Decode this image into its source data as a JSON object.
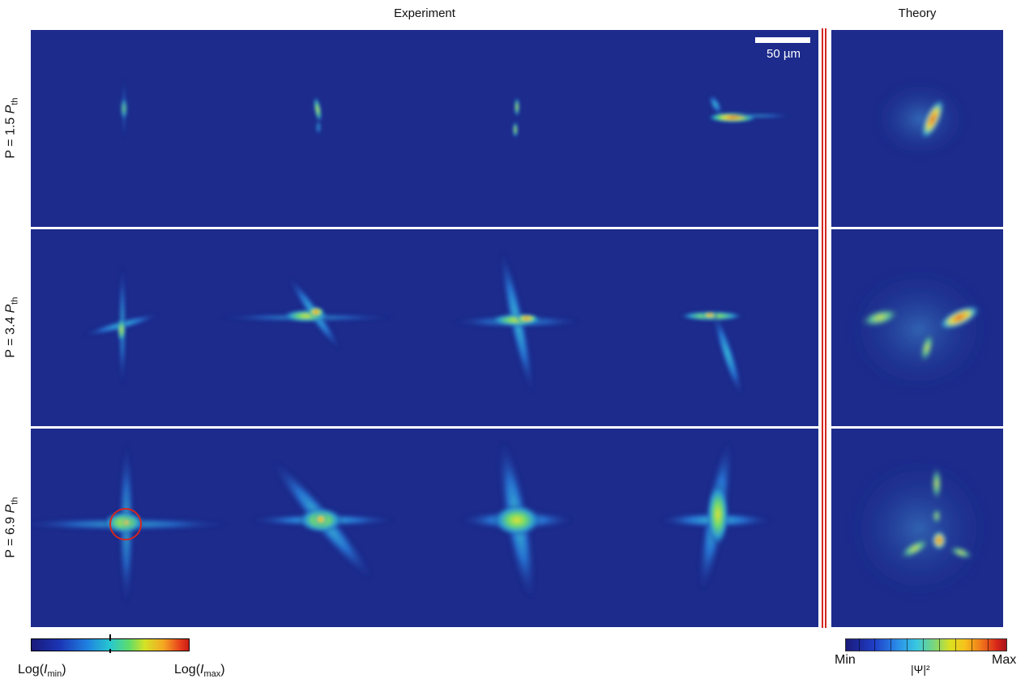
{
  "headers": {
    "experiment": "Experiment",
    "theory": "Theory"
  },
  "scale_bar": {
    "label": "50 µm"
  },
  "rows": [
    {
      "label_prefix": "P = 1.5 ",
      "label_var": "P",
      "label_sub": "th"
    },
    {
      "label_prefix": "P = 3.4 ",
      "label_var": "P",
      "label_sub": "th"
    },
    {
      "label_prefix": "P = 6.9 ",
      "label_var": "P",
      "label_sub": "th"
    }
  ],
  "colorbar_left": {
    "min_func": "Log(",
    "min_var": "I",
    "min_sub": "min",
    "min_close": ")",
    "max_func": "Log(",
    "max_var": "I",
    "max_sub": "max",
    "max_close": ")"
  },
  "colorbar_right": {
    "min": "Min",
    "max": "Max",
    "quantity": "|Ψ|²"
  },
  "colors": {
    "background": "#1c2b8c",
    "accent_red": "#d4261f"
  }
}
